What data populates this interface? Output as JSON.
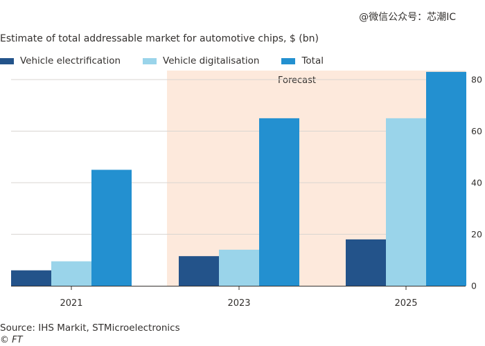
{
  "watermark": "@微信公众号：芯潮IC",
  "source": "Source: IHS Markit, STMicroelectronics",
  "credit": "© FT",
  "colors": {
    "forecast_bg": "#fde9dc",
    "gridline": "#d9d5d1",
    "axis": "#33302e"
  },
  "chart_data": {
    "type": "bar",
    "title": "Estimate of total addressable market for automotive chips, $ (bn)",
    "categories": [
      "2021",
      "2023",
      "2025"
    ],
    "series": [
      {
        "name": "Vehicle electrification",
        "color": "#23538a",
        "values": [
          6,
          11.5,
          18
        ]
      },
      {
        "name": "Vehicle digitalisation",
        "color": "#9ad4ea",
        "values": [
          9.5,
          14,
          65
        ]
      },
      {
        "name": "Total",
        "color": "#2390d0",
        "values": [
          45,
          65,
          83
        ]
      }
    ],
    "ylim": [
      0,
      80
    ],
    "yticks": [
      0,
      20,
      40,
      60,
      80
    ],
    "y_axis_position": "right",
    "grid": true,
    "legend_position": "top-left",
    "annotation": {
      "label": "Forecast",
      "from_category": "2023",
      "to_category": "2025"
    }
  }
}
